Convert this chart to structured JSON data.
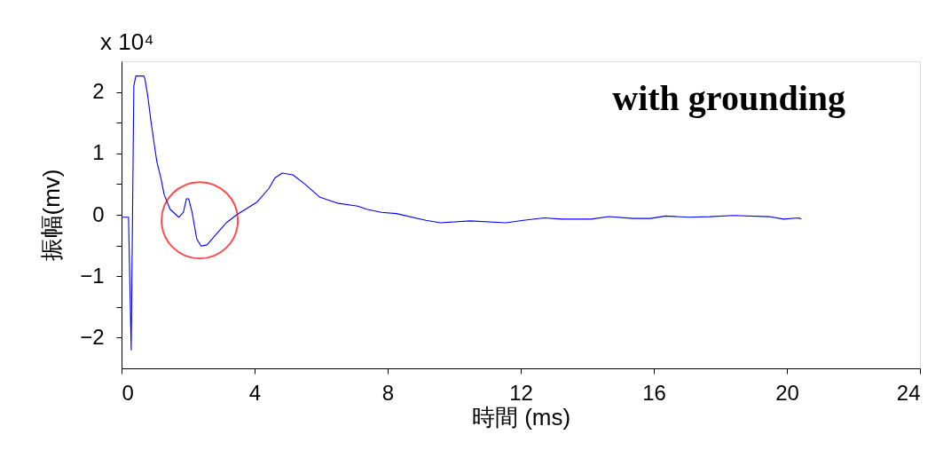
{
  "chart_data": {
    "type": "line",
    "title": "with grounding",
    "xlabel": "時間 (ms)",
    "ylabel": "振幅(mv)",
    "annotations": [
      "x 10⁴"
    ],
    "x": [
      0,
      0.21,
      0.29,
      0.37,
      0.43,
      0.67,
      0.7,
      0.79,
      0.88,
      0.97,
      1.06,
      1.19,
      1.28,
      1.46,
      1.72,
      1.86,
      1.95,
      2.02,
      2.12,
      2.26,
      2.39,
      2.57,
      2.84,
      3.15,
      3.46,
      4.08,
      4.43,
      4.61,
      4.83,
      5.15,
      5.51,
      5.95,
      6.48,
      7.1,
      7.37,
      7.81,
      8.26,
      9.15,
      9.59,
      10.48,
      11.55,
      12.08,
      12.7,
      13.23,
      14.12,
      14.65,
      15.37,
      15.9,
      16.35,
      17.05,
      17.68,
      18.39,
      19.46,
      19.9,
      20.35,
      20.43
    ],
    "series": [
      {
        "color": "#0000ff",
        "values": [
          -0.04,
          -0.04,
          -2.2,
          2.1,
          2.26,
          2.26,
          2.22,
          1.93,
          1.54,
          1.2,
          0.87,
          0.58,
          0.33,
          0.09,
          -0.04,
          0.04,
          0.26,
          0.26,
          0.04,
          -0.39,
          -0.51,
          -0.49,
          -0.32,
          -0.13,
          0.0,
          0.21,
          0.43,
          0.6,
          0.68,
          0.65,
          0.5,
          0.29,
          0.19,
          0.14,
          0.09,
          0.04,
          0.02,
          -0.09,
          -0.13,
          -0.1,
          -0.13,
          -0.09,
          -0.05,
          -0.07,
          -0.07,
          -0.03,
          -0.06,
          -0.06,
          -0.02,
          -0.04,
          -0.03,
          -0.01,
          -0.03,
          -0.07,
          -0.05,
          -0.07
        ]
      }
    ],
    "xlim": [
      0,
      24
    ],
    "xticks": [
      0,
      4,
      8,
      12,
      16,
      20,
      24
    ],
    "ylim": [
      -2.5,
      2.5
    ],
    "yticks": [
      -2,
      {
        "value": -1.5,
        "label": null
      },
      -1,
      {
        "value": -0.5,
        "label": null
      },
      0,
      {
        "value": 0.5,
        "label": null
      },
      1,
      {
        "value": 1.5,
        "label": null
      },
      2
    ],
    "grid": false,
    "legend": false,
    "marker": "none",
    "line_style": "solid"
  }
}
